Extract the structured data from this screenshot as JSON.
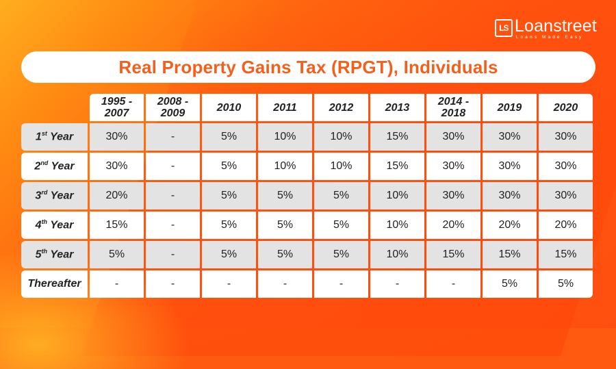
{
  "brand": {
    "logo_mark": "LS",
    "name": "Loanstreet",
    "tagline": "Loans Made Easy"
  },
  "title": "Real Property Gains Tax (RPGT), Individuals",
  "table": {
    "columns": [
      "1995 -\n2007",
      "2008 -\n2009",
      "2010",
      "2011",
      "2012",
      "2013",
      "2014 -\n2018",
      "2019",
      "2020"
    ],
    "rows": [
      {
        "label_num": "1",
        "label_sup": "st",
        "label_word": " Year",
        "values": [
          "30%",
          "-",
          "5%",
          "10%",
          "10%",
          "15%",
          "30%",
          "30%",
          "30%"
        ]
      },
      {
        "label_num": "2",
        "label_sup": "nd",
        "label_word": " Year",
        "values": [
          "30%",
          "-",
          "5%",
          "10%",
          "10%",
          "15%",
          "30%",
          "30%",
          "30%"
        ]
      },
      {
        "label_num": "3",
        "label_sup": "rd",
        "label_word": " Year",
        "values": [
          "20%",
          "-",
          "5%",
          "5%",
          "5%",
          "10%",
          "30%",
          "30%",
          "30%"
        ]
      },
      {
        "label_num": "4",
        "label_sup": "th",
        "label_word": " Year",
        "values": [
          "15%",
          "-",
          "5%",
          "5%",
          "5%",
          "10%",
          "20%",
          "20%",
          "20%"
        ]
      },
      {
        "label_num": "5",
        "label_sup": "th",
        "label_word": " Year",
        "values": [
          "5%",
          "-",
          "5%",
          "5%",
          "5%",
          "10%",
          "15%",
          "15%",
          "15%"
        ]
      },
      {
        "label_num": "Thereafter",
        "label_sup": "",
        "label_word": "",
        "values": [
          "-",
          "-",
          "-",
          "-",
          "-",
          "-",
          "-",
          "5%",
          "5%"
        ]
      }
    ]
  },
  "colors": {
    "title_text": "#f4601b",
    "background": "#ff5a10",
    "row_gray": "#e3e3e3",
    "row_white": "#ffffff"
  }
}
